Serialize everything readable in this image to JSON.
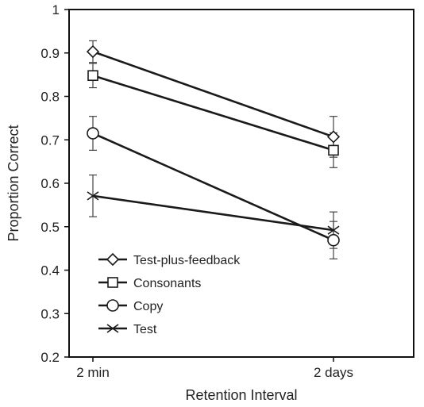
{
  "chart_data": {
    "type": "line",
    "title": "",
    "xlabel": "Retention Interval",
    "ylabel": "Proportion Correct",
    "categories": [
      "2 min",
      "2 days"
    ],
    "ylim": [
      0.2,
      1
    ],
    "yticks": [
      "0.2",
      "0.3",
      "0.4",
      "0.5",
      "0.6",
      "0.7",
      "0.8",
      "0.9",
      "1"
    ],
    "grid": false,
    "legend_position": "bottom-left",
    "series": [
      {
        "name": "Test-plus-feedback",
        "marker": "diamond",
        "values": [
          0.903,
          0.707
        ],
        "errors": [
          0.025,
          0.047
        ]
      },
      {
        "name": "Consonants",
        "marker": "square",
        "values": [
          0.848,
          0.676
        ],
        "errors": [
          0.028,
          0.04
        ]
      },
      {
        "name": "Copy",
        "marker": "circle",
        "values": [
          0.715,
          0.469
        ],
        "errors": [
          0.039,
          0.043
        ]
      },
      {
        "name": "Test",
        "marker": "x",
        "values": [
          0.571,
          0.492
        ],
        "errors": [
          0.048,
          0.042
        ]
      }
    ],
    "colors": {
      "line": "#1a1a1a",
      "marker_fill": "#ffffff",
      "errorbar": "#444444"
    }
  }
}
